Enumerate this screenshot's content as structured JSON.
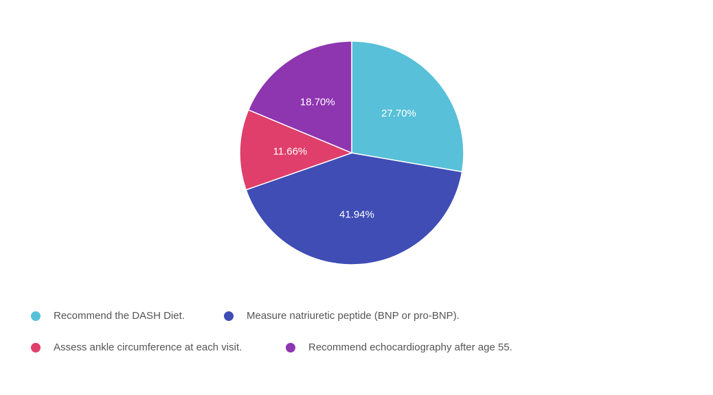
{
  "chart_data": {
    "type": "pie",
    "start": "top",
    "direction": "clockwise",
    "slices": [
      {
        "label": "Recommend the DASH Diet.",
        "value": 27.7,
        "display": "27.70%",
        "color": "#58C0D8"
      },
      {
        "label": "Measure natriuretic peptide (BNP or pro-BNP).",
        "value": 41.94,
        "display": "41.94%",
        "color": "#3F4DB5"
      },
      {
        "label": "Assess ankle circumference at each visit.",
        "value": 11.66,
        "display": "11.66%",
        "color": "#DF3F6A"
      },
      {
        "label": "Recommend echocardiography after age 55.",
        "value": 18.7,
        "display": "18.70%",
        "color": "#8E35B0"
      }
    ],
    "legend": "bottom-left"
  }
}
